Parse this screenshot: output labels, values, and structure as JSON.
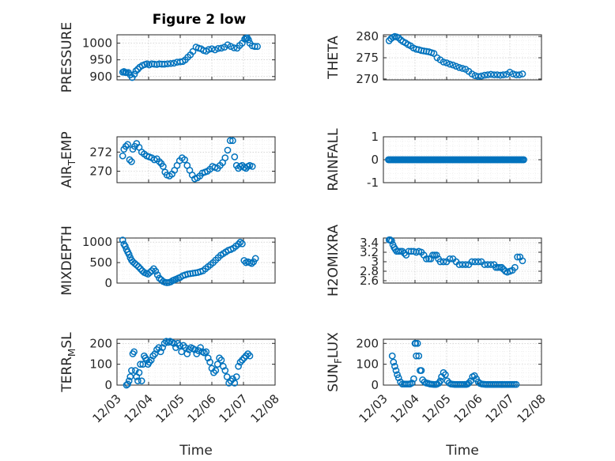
{
  "figure": {
    "title": "Figure 2 low"
  },
  "style": {
    "marker_color": "#0072BD",
    "axis_color": "#262626",
    "background": "#ffffff"
  },
  "chart_data": [
    {
      "id": "pressure",
      "type": "scatter",
      "title": "Figure 2 low",
      "ylabel": "PRESSURE",
      "xlabel": "",
      "ylim": [
        890,
        1025
      ],
      "yticks": [
        900,
        950,
        1000
      ],
      "xlim": [
        0,
        5
      ],
      "xticks": [],
      "grid": true,
      "marker": "circle",
      "x": [
        0.18,
        0.22,
        0.26,
        0.3,
        0.36,
        0.42,
        0.48,
        0.55,
        0.6,
        0.66,
        0.72,
        0.8,
        0.88,
        0.95,
        1.02,
        1.1,
        1.18,
        1.26,
        1.34,
        1.42,
        1.5,
        1.6,
        1.7,
        1.8,
        1.9,
        2.0,
        2.08,
        2.16,
        2.24,
        2.32,
        2.4,
        2.5,
        2.58,
        2.66,
        2.74,
        2.82,
        2.9,
        3.0,
        3.1,
        3.2,
        3.3,
        3.4,
        3.5,
        3.6,
        3.7,
        3.8,
        3.88,
        3.96,
        4.04,
        4.08,
        4.12,
        4.16,
        4.2,
        4.28,
        4.36,
        4.44
      ],
      "y": [
        913,
        915,
        912,
        912,
        912,
        905,
        897,
        907,
        917,
        922,
        928,
        933,
        936,
        938,
        935,
        938,
        937,
        936,
        938,
        937,
        937,
        938,
        939,
        940,
        943,
        944,
        945,
        950,
        958,
        965,
        975,
        988,
        985,
        983,
        978,
        976,
        981,
        983,
        980,
        984,
        985,
        988,
        995,
        990,
        986,
        985,
        993,
        1000,
        1012,
        1015,
        1016,
        1010,
        1000,
        992,
        990,
        990
      ]
    },
    {
      "id": "theta",
      "type": "scatter",
      "ylabel": "THETA",
      "xlabel": "",
      "ylim": [
        269.8,
        280.4
      ],
      "yticks": [
        270,
        275,
        280
      ],
      "xlim": [
        0,
        5
      ],
      "xticks": [],
      "grid": true,
      "marker": "circle",
      "x": [
        0.18,
        0.24,
        0.3,
        0.36,
        0.42,
        0.48,
        0.55,
        0.62,
        0.7,
        0.78,
        0.86,
        0.95,
        1.04,
        1.12,
        1.2,
        1.28,
        1.36,
        1.44,
        1.52,
        1.6,
        1.7,
        1.8,
        1.9,
        2.0,
        2.1,
        2.2,
        2.3,
        2.4,
        2.5,
        2.6,
        2.7,
        2.8,
        2.9,
        3.0,
        3.1,
        3.2,
        3.3,
        3.4,
        3.5,
        3.6,
        3.7,
        3.8,
        3.9,
        4.0,
        4.1,
        4.2,
        4.3,
        4.4
      ],
      "y": [
        279,
        279.5,
        279.8,
        280,
        279.9,
        279.7,
        279.2,
        278.8,
        278.5,
        278.1,
        277.8,
        277.3,
        277,
        276.9,
        276.7,
        276.6,
        276.5,
        276.4,
        276.2,
        276,
        275,
        274.5,
        274,
        273.8,
        273.5,
        273.3,
        273,
        272.7,
        272.5,
        272.3,
        271.8,
        271.2,
        270.8,
        270.6,
        270.7,
        270.9,
        271,
        271.1,
        271,
        271,
        270.9,
        271,
        271.1,
        271.6,
        271.2,
        271,
        271,
        271.2
      ]
    },
    {
      "id": "air-temp",
      "type": "scatter",
      "ylabel_main": "AIR",
      "ylabel_sub": "T",
      "ylabel_rest": "EMP",
      "xlabel": "",
      "ylim": [
        268.8,
        273.6
      ],
      "yticks": [
        270,
        272
      ],
      "xlim": [
        0,
        5
      ],
      "xticks": [],
      "grid": true,
      "marker": "circle",
      "x": [
        0.18,
        0.22,
        0.28,
        0.34,
        0.4,
        0.46,
        0.5,
        0.56,
        0.62,
        0.7,
        0.78,
        0.86,
        0.94,
        1.02,
        1.1,
        1.18,
        1.26,
        1.34,
        1.4,
        1.46,
        1.52,
        1.58,
        1.66,
        1.74,
        1.82,
        1.9,
        1.98,
        2.06,
        2.14,
        2.22,
        2.3,
        2.38,
        2.46,
        2.54,
        2.62,
        2.7,
        2.78,
        2.86,
        2.94,
        3.02,
        3.1,
        3.18,
        3.26,
        3.34,
        3.42,
        3.5,
        3.58,
        3.66,
        3.72,
        3.78,
        3.84,
        3.9,
        3.96,
        4.02,
        4.08,
        4.14,
        4.2,
        4.28
      ],
      "y": [
        271.6,
        272.3,
        272.6,
        272.8,
        271.2,
        271,
        272.3,
        272.6,
        272.9,
        272.5,
        272,
        271.8,
        271.6,
        271.5,
        271.4,
        271.2,
        271.3,
        271,
        270.8,
        270.5,
        269.9,
        269.6,
        269.5,
        269.7,
        270.1,
        270.6,
        271.1,
        271.4,
        271.2,
        270.6,
        270.1,
        269.6,
        269.2,
        269.3,
        269.5,
        269.8,
        269.9,
        270,
        270.2,
        270.5,
        270.4,
        270.3,
        270.6,
        270.9,
        271.4,
        272.2,
        273.2,
        273.2,
        271.5,
        270.6,
        270.3,
        270.5,
        270.6,
        270.4,
        270.3,
        270.5,
        270.6,
        270.5
      ]
    },
    {
      "id": "rainfall",
      "type": "scatter",
      "ylabel": "RAINFALL",
      "xlabel": "",
      "ylim": [
        -1,
        1
      ],
      "yticks": [
        -1,
        0,
        1
      ],
      "xlim": [
        0,
        5
      ],
      "xticks": [],
      "grid": true,
      "marker": "circle",
      "x_start": 0.16,
      "x_end": 4.44,
      "x_step": 0.04,
      "constant_y": 0
    },
    {
      "id": "mixdepth",
      "type": "scatter",
      "ylabel": "MIXDEPTH",
      "xlabel": "",
      "ylim": [
        0,
        1100
      ],
      "yticks": [
        0,
        500,
        1000
      ],
      "xlim": [
        0,
        5
      ],
      "xticks": [],
      "grid": true,
      "marker": "circle",
      "x": [
        0.18,
        0.22,
        0.26,
        0.3,
        0.34,
        0.38,
        0.42,
        0.46,
        0.5,
        0.56,
        0.62,
        0.68,
        0.74,
        0.8,
        0.86,
        0.92,
        0.98,
        1.04,
        1.1,
        1.16,
        1.22,
        1.28,
        1.34,
        1.4,
        1.46,
        1.52,
        1.58,
        1.64,
        1.7,
        1.76,
        1.82,
        1.88,
        1.94,
        2.0,
        2.08,
        2.16,
        2.24,
        2.32,
        2.4,
        2.48,
        2.56,
        2.64,
        2.72,
        2.8,
        2.88,
        2.96,
        3.04,
        3.12,
        3.2,
        3.28,
        3.36,
        3.44,
        3.52,
        3.6,
        3.68,
        3.76,
        3.84,
        3.9,
        3.96,
        4.02,
        4.08,
        4.14,
        4.2,
        4.26,
        4.32,
        4.38
      ],
      "y": [
        1050,
        950,
        900,
        820,
        760,
        700,
        620,
        560,
        520,
        480,
        440,
        400,
        350,
        300,
        260,
        240,
        220,
        260,
        300,
        350,
        290,
        200,
        120,
        80,
        40,
        20,
        10,
        15,
        30,
        60,
        80,
        100,
        120,
        140,
        180,
        200,
        220,
        230,
        240,
        250,
        260,
        280,
        300,
        350,
        400,
        450,
        500,
        560,
        620,
        680,
        720,
        760,
        800,
        820,
        850,
        900,
        950,
        1000,
        960,
        550,
        500,
        520,
        500,
        480,
        520,
        600
      ]
    },
    {
      "id": "h2omixra",
      "type": "scatter",
      "ylabel": "H2OMIXRA",
      "xlabel": "",
      "ylim": [
        2.55,
        3.5
      ],
      "yticks": [
        2.6,
        2.8,
        3,
        3.2,
        3.4
      ],
      "xlim": [
        0,
        5
      ],
      "xticks": [],
      "grid": true,
      "marker": "circle",
      "x": [
        0.18,
        0.22,
        0.26,
        0.3,
        0.34,
        0.38,
        0.42,
        0.48,
        0.54,
        0.6,
        0.66,
        0.72,
        0.8,
        0.88,
        0.96,
        1.04,
        1.12,
        1.2,
        1.28,
        1.36,
        1.44,
        1.5,
        1.56,
        1.62,
        1.68,
        1.74,
        1.8,
        1.9,
        2.0,
        2.1,
        2.2,
        2.3,
        2.4,
        2.5,
        2.6,
        2.7,
        2.8,
        2.9,
        3.0,
        3.1,
        3.2,
        3.3,
        3.4,
        3.5,
        3.56,
        3.62,
        3.68,
        3.74,
        3.8,
        3.86,
        3.92,
        4.0,
        4.08,
        4.16,
        4.24,
        4.32,
        4.4
      ],
      "y": [
        3.46,
        3.46,
        3.44,
        3.36,
        3.3,
        3.26,
        3.22,
        3.22,
        3.22,
        3.22,
        3.18,
        3.14,
        3.22,
        3.22,
        3.22,
        3.2,
        3.22,
        3.2,
        3.14,
        3.06,
        3.06,
        3.06,
        3.14,
        3.14,
        3.14,
        3.06,
        3.0,
        3.0,
        3.0,
        3.06,
        3.06,
        3.0,
        2.94,
        2.94,
        2.94,
        2.94,
        3.0,
        3.0,
        3.0,
        3.0,
        2.94,
        2.94,
        2.94,
        2.94,
        2.88,
        2.88,
        2.88,
        2.88,
        2.84,
        2.8,
        2.78,
        2.8,
        2.82,
        2.88,
        3.1,
        3.1,
        3.02
      ]
    },
    {
      "id": "terr-msl",
      "type": "scatter",
      "ylabel_main": "TERR",
      "ylabel_sub": "M",
      "ylabel_rest": "SL",
      "xlabel": "Time",
      "ylim": [
        0,
        220
      ],
      "yticks": [
        0,
        100,
        200
      ],
      "xlim": [
        0,
        5
      ],
      "xticks": [
        0,
        1,
        2,
        3,
        4,
        5
      ],
      "xticklabels": [
        "12/03",
        "12/04",
        "12/05",
        "12/06",
        "12/07",
        "12/08"
      ],
      "grid": true,
      "marker": "circle",
      "x": [
        0.3,
        0.34,
        0.38,
        0.42,
        0.46,
        0.5,
        0.54,
        0.58,
        0.62,
        0.66,
        0.7,
        0.74,
        0.78,
        0.82,
        0.86,
        0.9,
        0.94,
        0.98,
        1.02,
        1.08,
        1.14,
        1.2,
        1.26,
        1.32,
        1.38,
        1.44,
        1.5,
        1.56,
        1.62,
        1.68,
        1.74,
        1.8,
        1.86,
        1.92,
        1.98,
        2.04,
        2.1,
        2.16,
        2.22,
        2.28,
        2.34,
        2.4,
        2.46,
        2.52,
        2.58,
        2.64,
        2.7,
        2.76,
        2.82,
        2.88,
        2.94,
        3.0,
        3.06,
        3.12,
        3.18,
        3.24,
        3.3,
        3.36,
        3.42,
        3.48,
        3.54,
        3.6,
        3.66,
        3.72,
        3.78,
        3.84,
        3.9,
        3.96,
        4.02,
        4.08,
        4.14,
        4.2
      ],
      "y": [
        0,
        5,
        20,
        40,
        70,
        150,
        160,
        70,
        40,
        20,
        60,
        100,
        20,
        100,
        140,
        130,
        120,
        100,
        110,
        120,
        140,
        150,
        170,
        180,
        160,
        180,
        200,
        210,
        205,
        210,
        205,
        200,
        180,
        200,
        190,
        160,
        190,
        180,
        150,
        170,
        180,
        175,
        170,
        150,
        165,
        180,
        160,
        155,
        160,
        130,
        110,
        80,
        60,
        70,
        100,
        130,
        120,
        90,
        70,
        40,
        10,
        20,
        30,
        10,
        40,
        90,
        110,
        120,
        130,
        140,
        150,
        140
      ]
    },
    {
      "id": "sun-flux",
      "type": "scatter",
      "ylabel_main": "SUN",
      "ylabel_sub": "F",
      "ylabel_rest": "LUX",
      "xlabel": "Time",
      "ylim": [
        0,
        220
      ],
      "yticks": [
        0,
        100,
        200
      ],
      "xlim": [
        0,
        5
      ],
      "xticks": [
        0,
        1,
        2,
        3,
        4,
        5
      ],
      "xticklabels": [
        "12/03",
        "12/04",
        "12/05",
        "12/06",
        "12/07",
        "12/08"
      ],
      "grid": true,
      "marker": "circle",
      "x": [
        0.28,
        0.32,
        0.36,
        0.4,
        0.44,
        0.48,
        0.54,
        0.6,
        0.66,
        0.72,
        0.78,
        0.84,
        0.9,
        0.96,
        1.0,
        1.02,
        1.04,
        1.08,
        1.12,
        1.16,
        1.2,
        1.24,
        1.3,
        1.36,
        1.42,
        1.48,
        1.54,
        1.6,
        1.66,
        1.7,
        1.76,
        1.8,
        1.84,
        1.9,
        1.96,
        2.02,
        2.08,
        2.14,
        2.2,
        2.26,
        2.32,
        2.38,
        2.44,
        2.5,
        2.56,
        2.62,
        2.66,
        2.7,
        2.76,
        2.82,
        2.88,
        2.94,
        3.0,
        3.06,
        3.12,
        3.18,
        3.24,
        3.3,
        3.36,
        3.42,
        3.48,
        3.54,
        3.6,
        3.66,
        3.72,
        3.78,
        3.84,
        3.9,
        3.96,
        4.02,
        4.08,
        4.14,
        4.2
      ],
      "y": [
        140,
        110,
        90,
        70,
        50,
        35,
        15,
        5,
        5,
        5,
        5,
        5,
        10,
        30,
        200,
        200,
        140,
        200,
        140,
        70,
        70,
        25,
        15,
        10,
        8,
        5,
        4,
        3,
        3,
        5,
        10,
        20,
        40,
        60,
        50,
        20,
        10,
        5,
        4,
        3,
        3,
        3,
        3,
        3,
        3,
        3,
        5,
        10,
        20,
        40,
        45,
        30,
        15,
        8,
        5,
        4,
        3,
        3,
        3,
        3,
        3,
        3,
        3,
        3,
        3,
        3,
        3,
        3,
        3,
        3,
        3,
        3,
        3
      ]
    }
  ]
}
